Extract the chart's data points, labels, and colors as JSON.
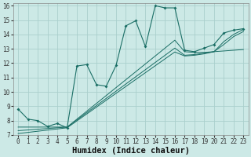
{
  "xlabel": "Humidex (Indice chaleur)",
  "xlim": [
    -0.5,
    23.5
  ],
  "ylim": [
    7,
    16.2
  ],
  "bg_color": "#cce9e6",
  "grid_color": "#aacfcc",
  "line_color": "#1a6e65",
  "line1_x": [
    0,
    1,
    2,
    3,
    4,
    5,
    6,
    7,
    8,
    9,
    10,
    11,
    12,
    13,
    14,
    15,
    16,
    17,
    18,
    19,
    20,
    21,
    22,
    23
  ],
  "line1_y": [
    8.8,
    8.1,
    8.0,
    7.6,
    7.8,
    7.5,
    11.8,
    11.9,
    10.5,
    10.4,
    11.85,
    14.6,
    14.95,
    13.15,
    16.0,
    15.85,
    15.85,
    12.9,
    12.8,
    13.05,
    13.3,
    14.1,
    14.3,
    14.4
  ],
  "line2_x": [
    0,
    1,
    2,
    3,
    4,
    5,
    6,
    7,
    8,
    9,
    10,
    11,
    12,
    13,
    14,
    15,
    16,
    17,
    18,
    19,
    20,
    21,
    22,
    23
  ],
  "line2_y": [
    7.55,
    7.55,
    7.55,
    7.55,
    7.55,
    7.55,
    8.1,
    8.65,
    9.2,
    9.75,
    10.3,
    10.85,
    11.4,
    11.95,
    12.5,
    13.05,
    13.6,
    12.8,
    12.75,
    12.75,
    12.8,
    12.85,
    12.9,
    12.95
  ],
  "line3_x": [
    0,
    1,
    2,
    3,
    4,
    5,
    6,
    7,
    8,
    9,
    10,
    11,
    12,
    13,
    14,
    15,
    16,
    17,
    18,
    19,
    20,
    21,
    22,
    23
  ],
  "line3_y": [
    7.3,
    7.35,
    7.4,
    7.45,
    7.5,
    7.55,
    8.05,
    8.55,
    9.05,
    9.55,
    10.05,
    10.55,
    11.05,
    11.55,
    12.05,
    12.55,
    13.05,
    12.55,
    12.6,
    12.7,
    12.8,
    13.5,
    14.0,
    14.35
  ],
  "line4_x": [
    0,
    1,
    2,
    3,
    4,
    5,
    6,
    7,
    8,
    9,
    10,
    11,
    12,
    13,
    14,
    15,
    16,
    17,
    18,
    19,
    20,
    21,
    22,
    23
  ],
  "line4_y": [
    7.1,
    7.18,
    7.26,
    7.34,
    7.42,
    7.5,
    7.98,
    8.46,
    8.94,
    9.42,
    9.9,
    10.38,
    10.86,
    11.34,
    11.82,
    12.3,
    12.78,
    12.5,
    12.55,
    12.65,
    12.8,
    13.3,
    13.85,
    14.2
  ],
  "xticks": [
    0,
    1,
    2,
    3,
    4,
    5,
    6,
    7,
    8,
    9,
    10,
    11,
    12,
    13,
    14,
    15,
    16,
    17,
    18,
    19,
    20,
    21,
    22,
    23
  ],
  "yticks": [
    7,
    8,
    9,
    10,
    11,
    12,
    13,
    14,
    15,
    16
  ],
  "tick_fontsize": 5.5,
  "label_fontsize": 7.5
}
